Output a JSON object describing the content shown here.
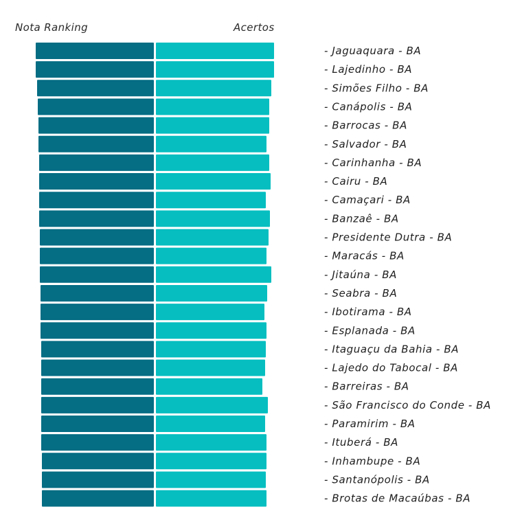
{
  "chart_data": {
    "type": "bar",
    "orientation": "horizontal-diverging",
    "title": "",
    "xlabel": "",
    "ylabel": "",
    "grid": false,
    "legend": "none",
    "series_headers": {
      "left": "Nota Ranking",
      "right": "Acertos"
    },
    "colors": {
      "left": "#056d84",
      "right": "#06bec0"
    },
    "value_note": "No axis shown; values are relative bar lengths",
    "categories": [
      "- Jaguaquara - BA",
      "- Lajedinho - BA",
      "- Simões Filho - BA",
      "- Canápolis - BA",
      "- Barrocas - BA",
      "- Salvador - BA",
      "- Carinhanha - BA",
      "- Cairu - BA",
      "- Camaçari - BA",
      "- Banzaê - BA",
      "- Presidente Dutra - BA",
      "- Maracás - BA",
      "- Jitaúna - BA",
      "- Seabra - BA",
      "- Ibotirama - BA",
      "- Esplanada - BA",
      "- Itaguaçu da Bahia - BA",
      "- Lajedo do Tabocal - BA",
      "- Barreiras - BA",
      "- São Francisco do Conde - BA",
      "- Paramirim - BA",
      "- Ituberá - BA",
      "- Inhambupe - BA",
      "- Santanópolis - BA",
      "- Brotas de Macaúbas - BA"
    ],
    "series": [
      {
        "name": "Nota Ranking",
        "side": "left",
        "values": [
          172,
          172,
          170,
          169,
          168,
          168,
          167,
          167,
          167,
          167,
          166,
          166,
          166,
          165,
          165,
          165,
          164,
          164,
          164,
          164,
          164,
          164,
          163,
          163,
          163
        ]
      },
      {
        "name": "Acertos",
        "side": "right",
        "values": [
          172,
          172,
          168,
          165,
          165,
          161,
          165,
          167,
          160,
          166,
          164,
          161,
          168,
          162,
          158,
          161,
          160,
          159,
          155,
          163,
          159,
          161,
          161,
          160,
          161
        ]
      }
    ]
  }
}
